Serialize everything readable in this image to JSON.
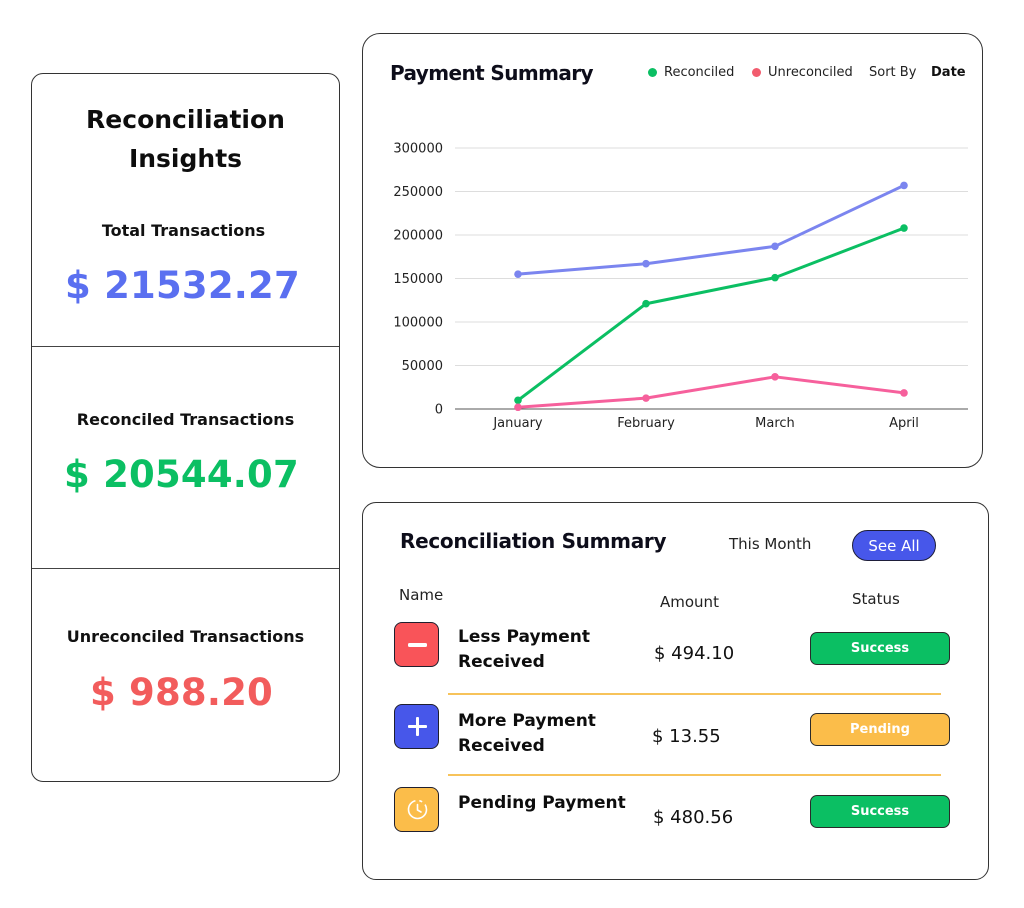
{
  "insights": {
    "title": "Reconciliation Insights",
    "total": {
      "label": "Total Transactions",
      "value": "$ 21532.27",
      "color": "#5a6ff0"
    },
    "reconciled": {
      "label": "Reconciled Transactions",
      "value": "$ 20544.07",
      "color": "#0bbf63"
    },
    "unreconciled": {
      "label": "Unreconciled Transactions",
      "value": "$ 988.20",
      "color": "#f25c5c"
    }
  },
  "payment_summary": {
    "title": "Payment Summary",
    "legend": [
      {
        "label": "Reconciled",
        "color": "#0bbf63"
      },
      {
        "label": "Unreconciled",
        "color": "#f25c6e"
      }
    ],
    "sort_by_label": "Sort By",
    "sort_by_value": "Date"
  },
  "chart_data": {
    "type": "line",
    "categories": [
      "January",
      "February",
      "March",
      "April"
    ],
    "y_ticks": [
      "300000",
      "250000",
      "200000",
      "150000",
      "100000",
      "50000",
      "0"
    ],
    "ylim": [
      0,
      300000
    ],
    "grid": true,
    "series": [
      {
        "values": [
          155000,
          167000,
          187000,
          257000
        ],
        "color": "#7b85ef"
      },
      {
        "name": "Reconciled",
        "values": [
          10000,
          121000,
          151000,
          208000
        ],
        "color": "#0bbf63"
      },
      {
        "name": "Unreconciled",
        "values": [
          2000,
          12500,
          37000,
          18500
        ],
        "color": "#f6609c"
      }
    ]
  },
  "reconciliation_summary": {
    "title": "Reconciliation Summary",
    "period": "This Month",
    "see_all_label": "See All",
    "columns": {
      "name": "Name",
      "amount": "Amount",
      "status": "Status"
    },
    "rows": [
      {
        "name": "Less Payment Received",
        "amount": "$ 494.10",
        "status": "Success",
        "icon": "minus-icon",
        "icon_color": "#f95459",
        "status_color": "#0bbf63"
      },
      {
        "name": "More Payment Received",
        "amount": "$ 13.55",
        "status": "Pending",
        "icon": "plus-icon",
        "icon_color": "#4757ea",
        "status_color": "#fbbd4a"
      },
      {
        "name": "Pending Payment",
        "amount": "$ 480.56",
        "status": "Success",
        "icon": "clock-icon",
        "icon_color": "#fbbd4a",
        "status_color": "#0bbf63"
      }
    ]
  }
}
